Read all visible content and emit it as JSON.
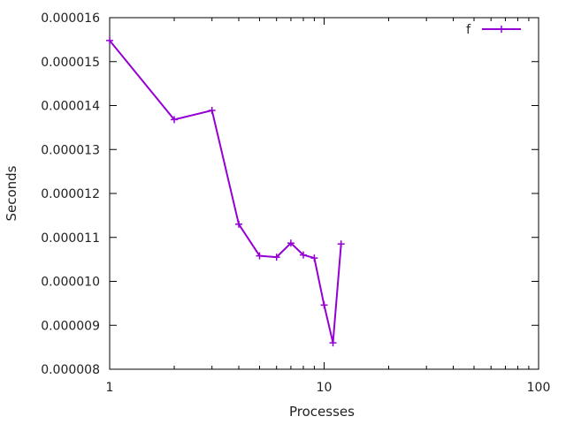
{
  "chart_data": {
    "type": "line",
    "x_scale": "log",
    "xlabel": "Processes",
    "ylabel": "Seconds",
    "xlim": [
      1,
      100
    ],
    "ylim": [
      8e-06,
      1.6e-05
    ],
    "x_ticks": [
      "1",
      "10",
      "100"
    ],
    "y_ticks": [
      "0.000008",
      "0.000009",
      "0.000010",
      "0.000011",
      "0.000012",
      "0.000013",
      "0.000014",
      "0.000015",
      "0.000016"
    ],
    "grid": false,
    "legend_position": "top-right",
    "series": [
      {
        "name": "f",
        "color": "#9400d3",
        "marker": "plus",
        "x": [
          1,
          2,
          3,
          4,
          5,
          6,
          7,
          8,
          9,
          10,
          11,
          12
        ],
        "y": [
          1.548e-05,
          1.368e-05,
          1.389e-05,
          1.13e-05,
          1.058e-05,
          1.055e-05,
          1.087e-05,
          1.06e-05,
          1.053e-05,
          9.46e-06,
          8.6e-06,
          1.085e-05
        ]
      }
    ]
  }
}
